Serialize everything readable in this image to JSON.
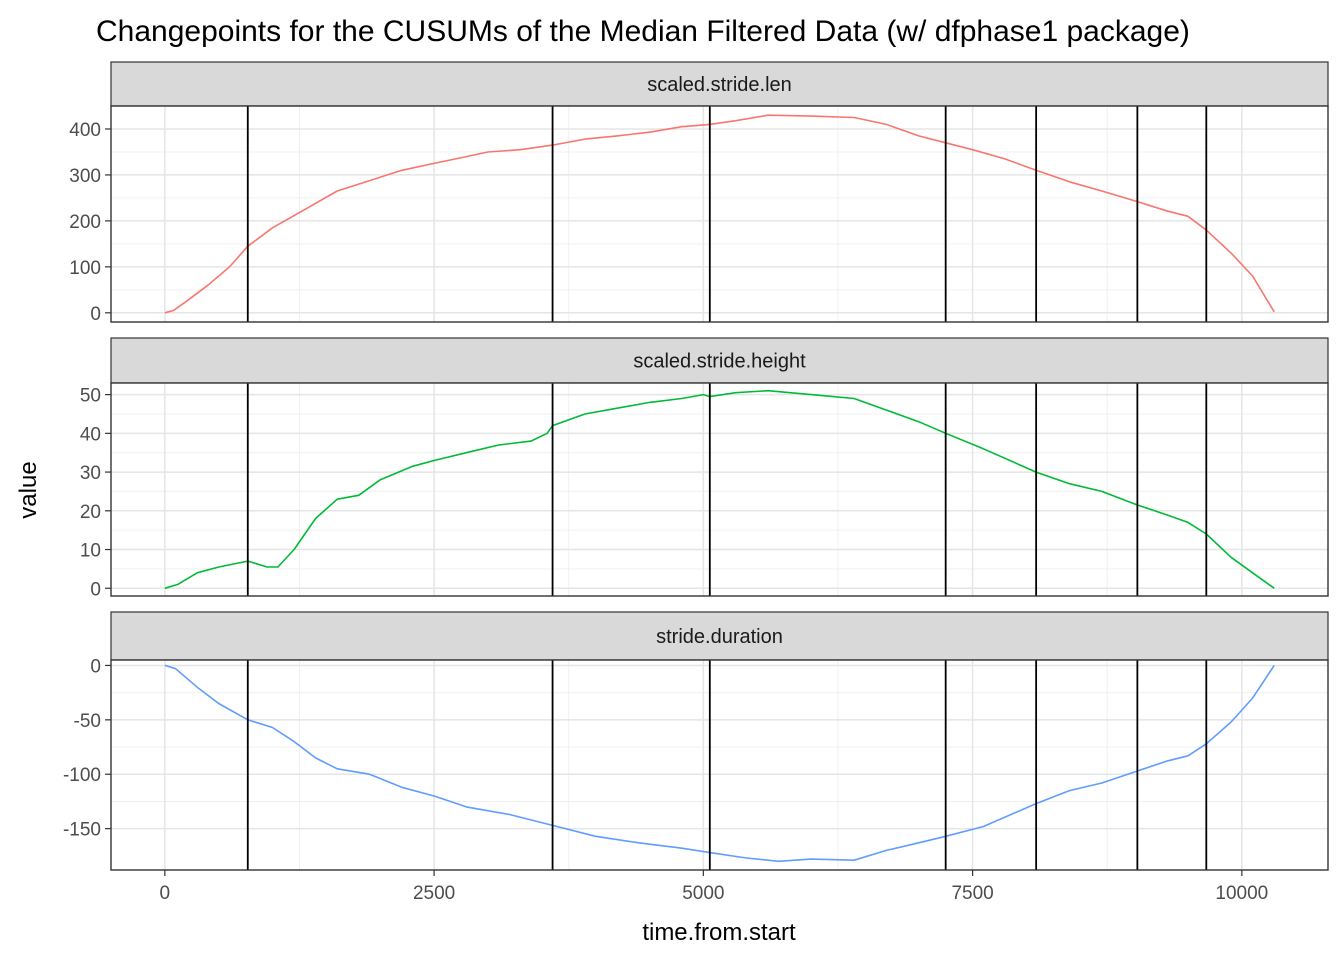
{
  "chart_data": {
    "type": "line",
    "title": "Changepoints for the CUSUMs of the Median Filtered Data (w/ dfphase1 package)",
    "xlabel": "time.from.start",
    "ylabel": "value",
    "xlim": [
      -500,
      10800
    ],
    "x_ticks": [
      0,
      2500,
      5000,
      7500,
      10000
    ],
    "x_tick_labels": [
      "0",
      "2500",
      "5000",
      "7500",
      "10000"
    ],
    "changepoints": [
      770,
      3600,
      5060,
      7250,
      8090,
      9030,
      9670
    ],
    "changepoint_color": "#000000",
    "grid": true,
    "legend": "none",
    "facets": [
      {
        "name": "scaled.stride.len",
        "color": "#F8766D",
        "ylim": [
          -20,
          450
        ],
        "y_ticks": [
          0,
          100,
          200,
          300,
          400
        ],
        "y_tick_labels": [
          "0",
          "100",
          "200",
          "300",
          "400"
        ],
        "points": [
          [
            0,
            0
          ],
          [
            80,
            5
          ],
          [
            200,
            25
          ],
          [
            400,
            60
          ],
          [
            600,
            100
          ],
          [
            770,
            145
          ],
          [
            1000,
            185
          ],
          [
            1300,
            225
          ],
          [
            1600,
            265
          ],
          [
            2000,
            295
          ],
          [
            2200,
            310
          ],
          [
            2500,
            325
          ],
          [
            2800,
            340
          ],
          [
            3000,
            350
          ],
          [
            3300,
            355
          ],
          [
            3600,
            365
          ],
          [
            3900,
            378
          ],
          [
            4200,
            385
          ],
          [
            4500,
            393
          ],
          [
            4800,
            405
          ],
          [
            5060,
            410
          ],
          [
            5300,
            418
          ],
          [
            5600,
            430
          ],
          [
            6000,
            428
          ],
          [
            6400,
            425
          ],
          [
            6700,
            410
          ],
          [
            7000,
            385
          ],
          [
            7250,
            370
          ],
          [
            7500,
            355
          ],
          [
            7800,
            335
          ],
          [
            8090,
            310
          ],
          [
            8400,
            285
          ],
          [
            8700,
            265
          ],
          [
            9030,
            242
          ],
          [
            9300,
            222
          ],
          [
            9500,
            210
          ],
          [
            9670,
            180
          ],
          [
            9900,
            130
          ],
          [
            10100,
            80
          ],
          [
            10300,
            2
          ]
        ]
      },
      {
        "name": "scaled.stride.height",
        "color": "#00BA38",
        "ylim": [
          -2,
          53
        ],
        "y_ticks": [
          0,
          10,
          20,
          30,
          40,
          50
        ],
        "y_tick_labels": [
          "0",
          "10",
          "20",
          "30",
          "40",
          "50"
        ],
        "points": [
          [
            0,
            0
          ],
          [
            120,
            1
          ],
          [
            300,
            4
          ],
          [
            500,
            5.5
          ],
          [
            770,
            7
          ],
          [
            950,
            5.5
          ],
          [
            1050,
            5.5
          ],
          [
            1200,
            10
          ],
          [
            1400,
            18
          ],
          [
            1600,
            23
          ],
          [
            1800,
            24
          ],
          [
            2000,
            28
          ],
          [
            2300,
            31.5
          ],
          [
            2500,
            33
          ],
          [
            2800,
            35
          ],
          [
            3100,
            37
          ],
          [
            3400,
            38
          ],
          [
            3550,
            40
          ],
          [
            3600,
            42
          ],
          [
            3900,
            45
          ],
          [
            4200,
            46.5
          ],
          [
            4500,
            48
          ],
          [
            4800,
            49
          ],
          [
            5000,
            50
          ],
          [
            5060,
            49.5
          ],
          [
            5300,
            50.5
          ],
          [
            5600,
            51
          ],
          [
            6000,
            50
          ],
          [
            6400,
            49
          ],
          [
            6700,
            46
          ],
          [
            7000,
            43
          ],
          [
            7250,
            40
          ],
          [
            7600,
            36
          ],
          [
            8090,
            30
          ],
          [
            8400,
            27
          ],
          [
            8700,
            25
          ],
          [
            9030,
            21.5
          ],
          [
            9300,
            19
          ],
          [
            9500,
            17
          ],
          [
            9670,
            14
          ],
          [
            9900,
            8
          ],
          [
            10100,
            4
          ],
          [
            10300,
            0
          ]
        ]
      },
      {
        "name": "stride.duration",
        "color": "#619CFF",
        "ylim": [
          -188,
          5
        ],
        "y_ticks": [
          0,
          -50,
          -100,
          -150
        ],
        "y_tick_labels": [
          "0",
          "-50",
          "-100",
          "-150"
        ],
        "points": [
          [
            0,
            0
          ],
          [
            100,
            -3
          ],
          [
            300,
            -20
          ],
          [
            500,
            -35
          ],
          [
            770,
            -50
          ],
          [
            1000,
            -57
          ],
          [
            1200,
            -70
          ],
          [
            1400,
            -85
          ],
          [
            1600,
            -95
          ],
          [
            1900,
            -100
          ],
          [
            2200,
            -112
          ],
          [
            2500,
            -120
          ],
          [
            2800,
            -130
          ],
          [
            3200,
            -137
          ],
          [
            3600,
            -147
          ],
          [
            4000,
            -157
          ],
          [
            4400,
            -163
          ],
          [
            4800,
            -168
          ],
          [
            5060,
            -172
          ],
          [
            5400,
            -177
          ],
          [
            5700,
            -180
          ],
          [
            6000,
            -178
          ],
          [
            6400,
            -179
          ],
          [
            6700,
            -170
          ],
          [
            7000,
            -163
          ],
          [
            7250,
            -157
          ],
          [
            7600,
            -148
          ],
          [
            8090,
            -127
          ],
          [
            8400,
            -115
          ],
          [
            8700,
            -108
          ],
          [
            9030,
            -97
          ],
          [
            9300,
            -88
          ],
          [
            9500,
            -83
          ],
          [
            9670,
            -72
          ],
          [
            9900,
            -52
          ],
          [
            10100,
            -30
          ],
          [
            10300,
            0
          ]
        ]
      }
    ]
  }
}
